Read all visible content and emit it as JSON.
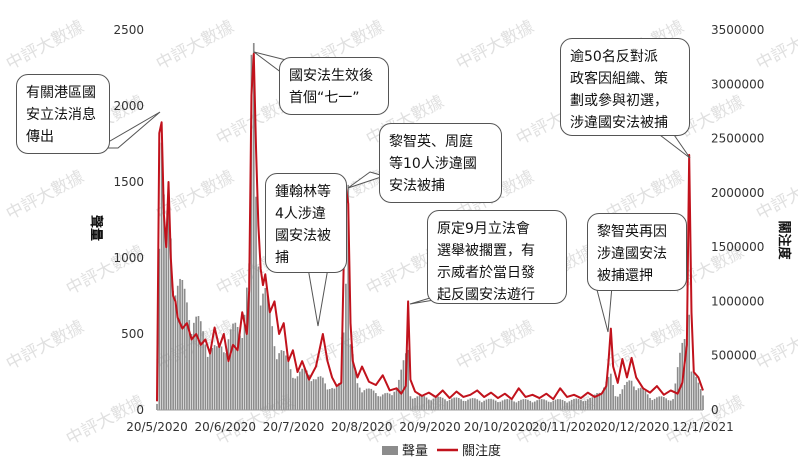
{
  "chart_data": {
    "type": "bar+line",
    "x_tick_labels": [
      "20/5/2020",
      "20/6/2020",
      "20/7/2020",
      "20/8/2020",
      "20/9/2020",
      "20/10/2020",
      "20/11/2020",
      "20/12/2020",
      "12/1/2021"
    ],
    "x_range": [
      "2020-05-20",
      "2021-01-12"
    ],
    "ylabel_left": "聲量",
    "ylabel_right": "關注度",
    "ylim_left": [
      0,
      2500
    ],
    "yticks_left": [
      "0",
      "500",
      "1000",
      "1500",
      "2000",
      "2500"
    ],
    "ylim_right": [
      0,
      3500000
    ],
    "yticks_right": [
      "0",
      "500000",
      "1000000",
      "1500000",
      "2000000",
      "2500000",
      "3000000",
      "3500000"
    ],
    "grid": false,
    "legend_position": "bottom",
    "series": [
      {
        "name": "聲量",
        "type": "bar",
        "axis": "left",
        "color": "#8c8c8c",
        "points": [
          [
            "2020-05-20",
            50
          ],
          [
            "2020-05-21",
            1100
          ],
          [
            "2020-05-22",
            1600
          ],
          [
            "2020-05-23",
            1200
          ],
          [
            "2020-05-24",
            1000
          ],
          [
            "2020-05-25",
            1300
          ],
          [
            "2020-05-27",
            900
          ],
          [
            "2020-05-29",
            780
          ],
          [
            "2020-06-01",
            680
          ],
          [
            "2020-06-05",
            580
          ],
          [
            "2020-06-10",
            430
          ],
          [
            "2020-06-15",
            350
          ],
          [
            "2020-06-20",
            460
          ],
          [
            "2020-06-25",
            500
          ],
          [
            "2020-06-29",
            820
          ],
          [
            "2020-06-30",
            1950
          ],
          [
            "2020-07-01",
            2100
          ],
          [
            "2020-07-02",
            1350
          ],
          [
            "2020-07-04",
            780
          ],
          [
            "2020-07-06",
            700
          ],
          [
            "2020-07-10",
            440
          ],
          [
            "2020-07-15",
            300
          ],
          [
            "2020-07-20",
            210
          ],
          [
            "2020-07-25",
            250
          ],
          [
            "2020-07-28",
            180
          ],
          [
            "2020-07-31",
            190
          ],
          [
            "2020-08-05",
            120
          ],
          [
            "2020-08-08",
            170
          ],
          [
            "2020-08-10",
            960
          ],
          [
            "2020-08-11",
            1450
          ],
          [
            "2020-08-12",
            380
          ],
          [
            "2020-08-15",
            160
          ],
          [
            "2020-08-20",
            120
          ],
          [
            "2020-08-25",
            100
          ],
          [
            "2020-08-30",
            90
          ],
          [
            "2020-09-06",
            350
          ],
          [
            "2020-09-07",
            90
          ],
          [
            "2020-09-15",
            75
          ],
          [
            "2020-09-25",
            70
          ],
          [
            "2020-10-05",
            65
          ],
          [
            "2020-10-15",
            60
          ],
          [
            "2020-10-25",
            60
          ],
          [
            "2020-11-05",
            60
          ],
          [
            "2020-11-15",
            60
          ],
          [
            "2020-11-25",
            70
          ],
          [
            "2020-12-03",
            200
          ],
          [
            "2020-12-05",
            90
          ],
          [
            "2020-12-12",
            180
          ],
          [
            "2020-12-20",
            80
          ],
          [
            "2020-12-30",
            70
          ],
          [
            "2021-01-06",
            650
          ],
          [
            "2021-01-07",
            230
          ],
          [
            "2021-01-12",
            110
          ]
        ]
      },
      {
        "name": "關注度",
        "type": "line",
        "axis": "right",
        "color": "#c1121c",
        "points": [
          [
            "2020-05-20",
            80000
          ],
          [
            "2020-05-21",
            2550000
          ],
          [
            "2020-05-22",
            2650000
          ],
          [
            "2020-05-23",
            1800000
          ],
          [
            "2020-05-24",
            1500000
          ],
          [
            "2020-05-25",
            2100000
          ],
          [
            "2020-05-26",
            1400000
          ],
          [
            "2020-05-27",
            1050000
          ],
          [
            "2020-05-28",
            1000000
          ],
          [
            "2020-05-29",
            850000
          ],
          [
            "2020-05-31",
            750000
          ],
          [
            "2020-06-02",
            800000
          ],
          [
            "2020-06-04",
            650000
          ],
          [
            "2020-06-06",
            700000
          ],
          [
            "2020-06-08",
            600000
          ],
          [
            "2020-06-10",
            650000
          ],
          [
            "2020-06-12",
            520000
          ],
          [
            "2020-06-14",
            760000
          ],
          [
            "2020-06-16",
            580000
          ],
          [
            "2020-06-18",
            700000
          ],
          [
            "2020-06-20",
            450000
          ],
          [
            "2020-06-22",
            600000
          ],
          [
            "2020-06-24",
            550000
          ],
          [
            "2020-06-26",
            900000
          ],
          [
            "2020-06-28",
            700000
          ],
          [
            "2020-06-29",
            1100000
          ],
          [
            "2020-06-30",
            2900000
          ],
          [
            "2020-07-01",
            3280000
          ],
          [
            "2020-07-02",
            2400000
          ],
          [
            "2020-07-03",
            1700000
          ],
          [
            "2020-07-04",
            1300000
          ],
          [
            "2020-07-05",
            1150000
          ],
          [
            "2020-07-06",
            1250000
          ],
          [
            "2020-07-08",
            900000
          ],
          [
            "2020-07-10",
            1000000
          ],
          [
            "2020-07-12",
            700000
          ],
          [
            "2020-07-14",
            800000
          ],
          [
            "2020-07-16",
            450000
          ],
          [
            "2020-07-18",
            550000
          ],
          [
            "2020-07-20",
            350000
          ],
          [
            "2020-07-22",
            450000
          ],
          [
            "2020-07-25",
            280000
          ],
          [
            "2020-07-28",
            400000
          ],
          [
            "2020-07-31",
            700000
          ],
          [
            "2020-08-02",
            450000
          ],
          [
            "2020-08-04",
            300000
          ],
          [
            "2020-08-06",
            220000
          ],
          [
            "2020-08-08",
            250000
          ],
          [
            "2020-08-09",
            1300000
          ],
          [
            "2020-08-10",
            2050000
          ],
          [
            "2020-08-11",
            1900000
          ],
          [
            "2020-08-12",
            800000
          ],
          [
            "2020-08-13",
            450000
          ],
          [
            "2020-08-15",
            300000
          ],
          [
            "2020-08-17",
            400000
          ],
          [
            "2020-08-20",
            260000
          ],
          [
            "2020-08-23",
            230000
          ],
          [
            "2020-08-26",
            320000
          ],
          [
            "2020-08-29",
            180000
          ],
          [
            "2020-09-01",
            200000
          ],
          [
            "2020-09-03",
            150000
          ],
          [
            "2020-09-05",
            220000
          ],
          [
            "2020-09-06",
            1000000
          ],
          [
            "2020-09-07",
            280000
          ],
          [
            "2020-09-09",
            170000
          ],
          [
            "2020-09-12",
            130000
          ],
          [
            "2020-09-15",
            160000
          ],
          [
            "2020-09-18",
            120000
          ],
          [
            "2020-09-21",
            180000
          ],
          [
            "2020-09-24",
            110000
          ],
          [
            "2020-09-27",
            170000
          ],
          [
            "2020-09-30",
            120000
          ],
          [
            "2020-10-03",
            140000
          ],
          [
            "2020-10-06",
            180000
          ],
          [
            "2020-10-09",
            120000
          ],
          [
            "2020-10-12",
            160000
          ],
          [
            "2020-10-15",
            110000
          ],
          [
            "2020-10-18",
            150000
          ],
          [
            "2020-10-21",
            100000
          ],
          [
            "2020-10-24",
            200000
          ],
          [
            "2020-10-27",
            120000
          ],
          [
            "2020-10-30",
            140000
          ],
          [
            "2020-11-02",
            110000
          ],
          [
            "2020-11-05",
            150000
          ],
          [
            "2020-11-08",
            100000
          ],
          [
            "2020-11-11",
            200000
          ],
          [
            "2020-11-14",
            120000
          ],
          [
            "2020-11-17",
            140000
          ],
          [
            "2020-11-20",
            110000
          ],
          [
            "2020-11-23",
            160000
          ],
          [
            "2020-11-26",
            120000
          ],
          [
            "2020-11-29",
            150000
          ],
          [
            "2020-12-01",
            220000
          ],
          [
            "2020-12-02",
            450000
          ],
          [
            "2020-12-03",
            750000
          ],
          [
            "2020-12-04",
            400000
          ],
          [
            "2020-12-06",
            250000
          ],
          [
            "2020-12-08",
            470000
          ],
          [
            "2020-12-10",
            300000
          ],
          [
            "2020-12-12",
            480000
          ],
          [
            "2020-12-14",
            300000
          ],
          [
            "2020-12-17",
            200000
          ],
          [
            "2020-12-20",
            160000
          ],
          [
            "2020-12-23",
            220000
          ],
          [
            "2020-12-26",
            140000
          ],
          [
            "2020-12-29",
            180000
          ],
          [
            "2021-01-01",
            150000
          ],
          [
            "2021-01-03",
            250000
          ],
          [
            "2021-01-05",
            600000
          ],
          [
            "2021-01-06",
            2350000
          ],
          [
            "2021-01-07",
            900000
          ],
          [
            "2021-01-08",
            350000
          ],
          [
            "2021-01-10",
            300000
          ],
          [
            "2021-01-12",
            180000
          ]
        ]
      }
    ],
    "annotations": [
      "有關港區國\n安立法消息\n傳出",
      "國安法生效後\n首個“七一”",
      "鍾翰林等\n4人涉違\n國安法被\n捕",
      "黎智英、周庭\n等10人涉違國\n安法被捕",
      "原定9月立法會\n選舉被擱置，有\n示威者於當日發\n起反國安法遊行",
      "黎智英再因\n涉違國安法\n被捕還押",
      "逾50名反對派\n政客因組織、策\n劃或參與初選，\n涉違國安法被捕"
    ],
    "watermark": "中評大數據"
  }
}
